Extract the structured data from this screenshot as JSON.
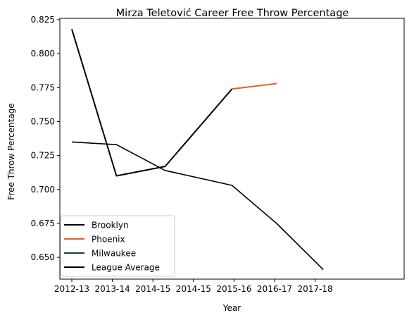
{
  "chart_data": {
    "type": "line",
    "title": "Mirza Teletović Career Free Throw Percentage",
    "xlabel": "Year",
    "ylabel": "Free Throw Percentage",
    "categories": [
      "2012-13",
      "2013-14",
      "2014-15",
      "2014-15",
      "2015-16",
      "2016-17",
      "2017-18"
    ],
    "ylim": [
      0.634,
      0.826
    ],
    "yticks": [
      0.65,
      0.675,
      0.7,
      0.725,
      0.75,
      0.775,
      0.8,
      0.825
    ],
    "ytick_labels": [
      "0.650",
      "0.675",
      "0.700",
      "0.725",
      "0.750",
      "0.775",
      "0.800",
      "0.825"
    ],
    "grid": false,
    "legend_position": "lower-left",
    "series": [
      {
        "name": "Brooklyn",
        "color": "#000000",
        "x": [
          0,
          1.1,
          2.3,
          3.95
        ],
        "values": [
          0.818,
          0.71,
          0.717,
          0.774
        ]
      },
      {
        "name": "Phoenix",
        "color": "#e0622a",
        "x": [
          3.95,
          5.05
        ],
        "values": [
          0.774,
          0.778
        ]
      },
      {
        "name": "Milwaukee",
        "color": "#0d4a24",
        "x": [],
        "values": []
      },
      {
        "name": "League Average",
        "color": "#000000",
        "x": [
          0,
          1.1,
          2.3,
          3.95,
          5.05,
          6.2
        ],
        "values": [
          0.735,
          0.733,
          0.714,
          0.703,
          0.675,
          0.641
        ]
      }
    ]
  }
}
